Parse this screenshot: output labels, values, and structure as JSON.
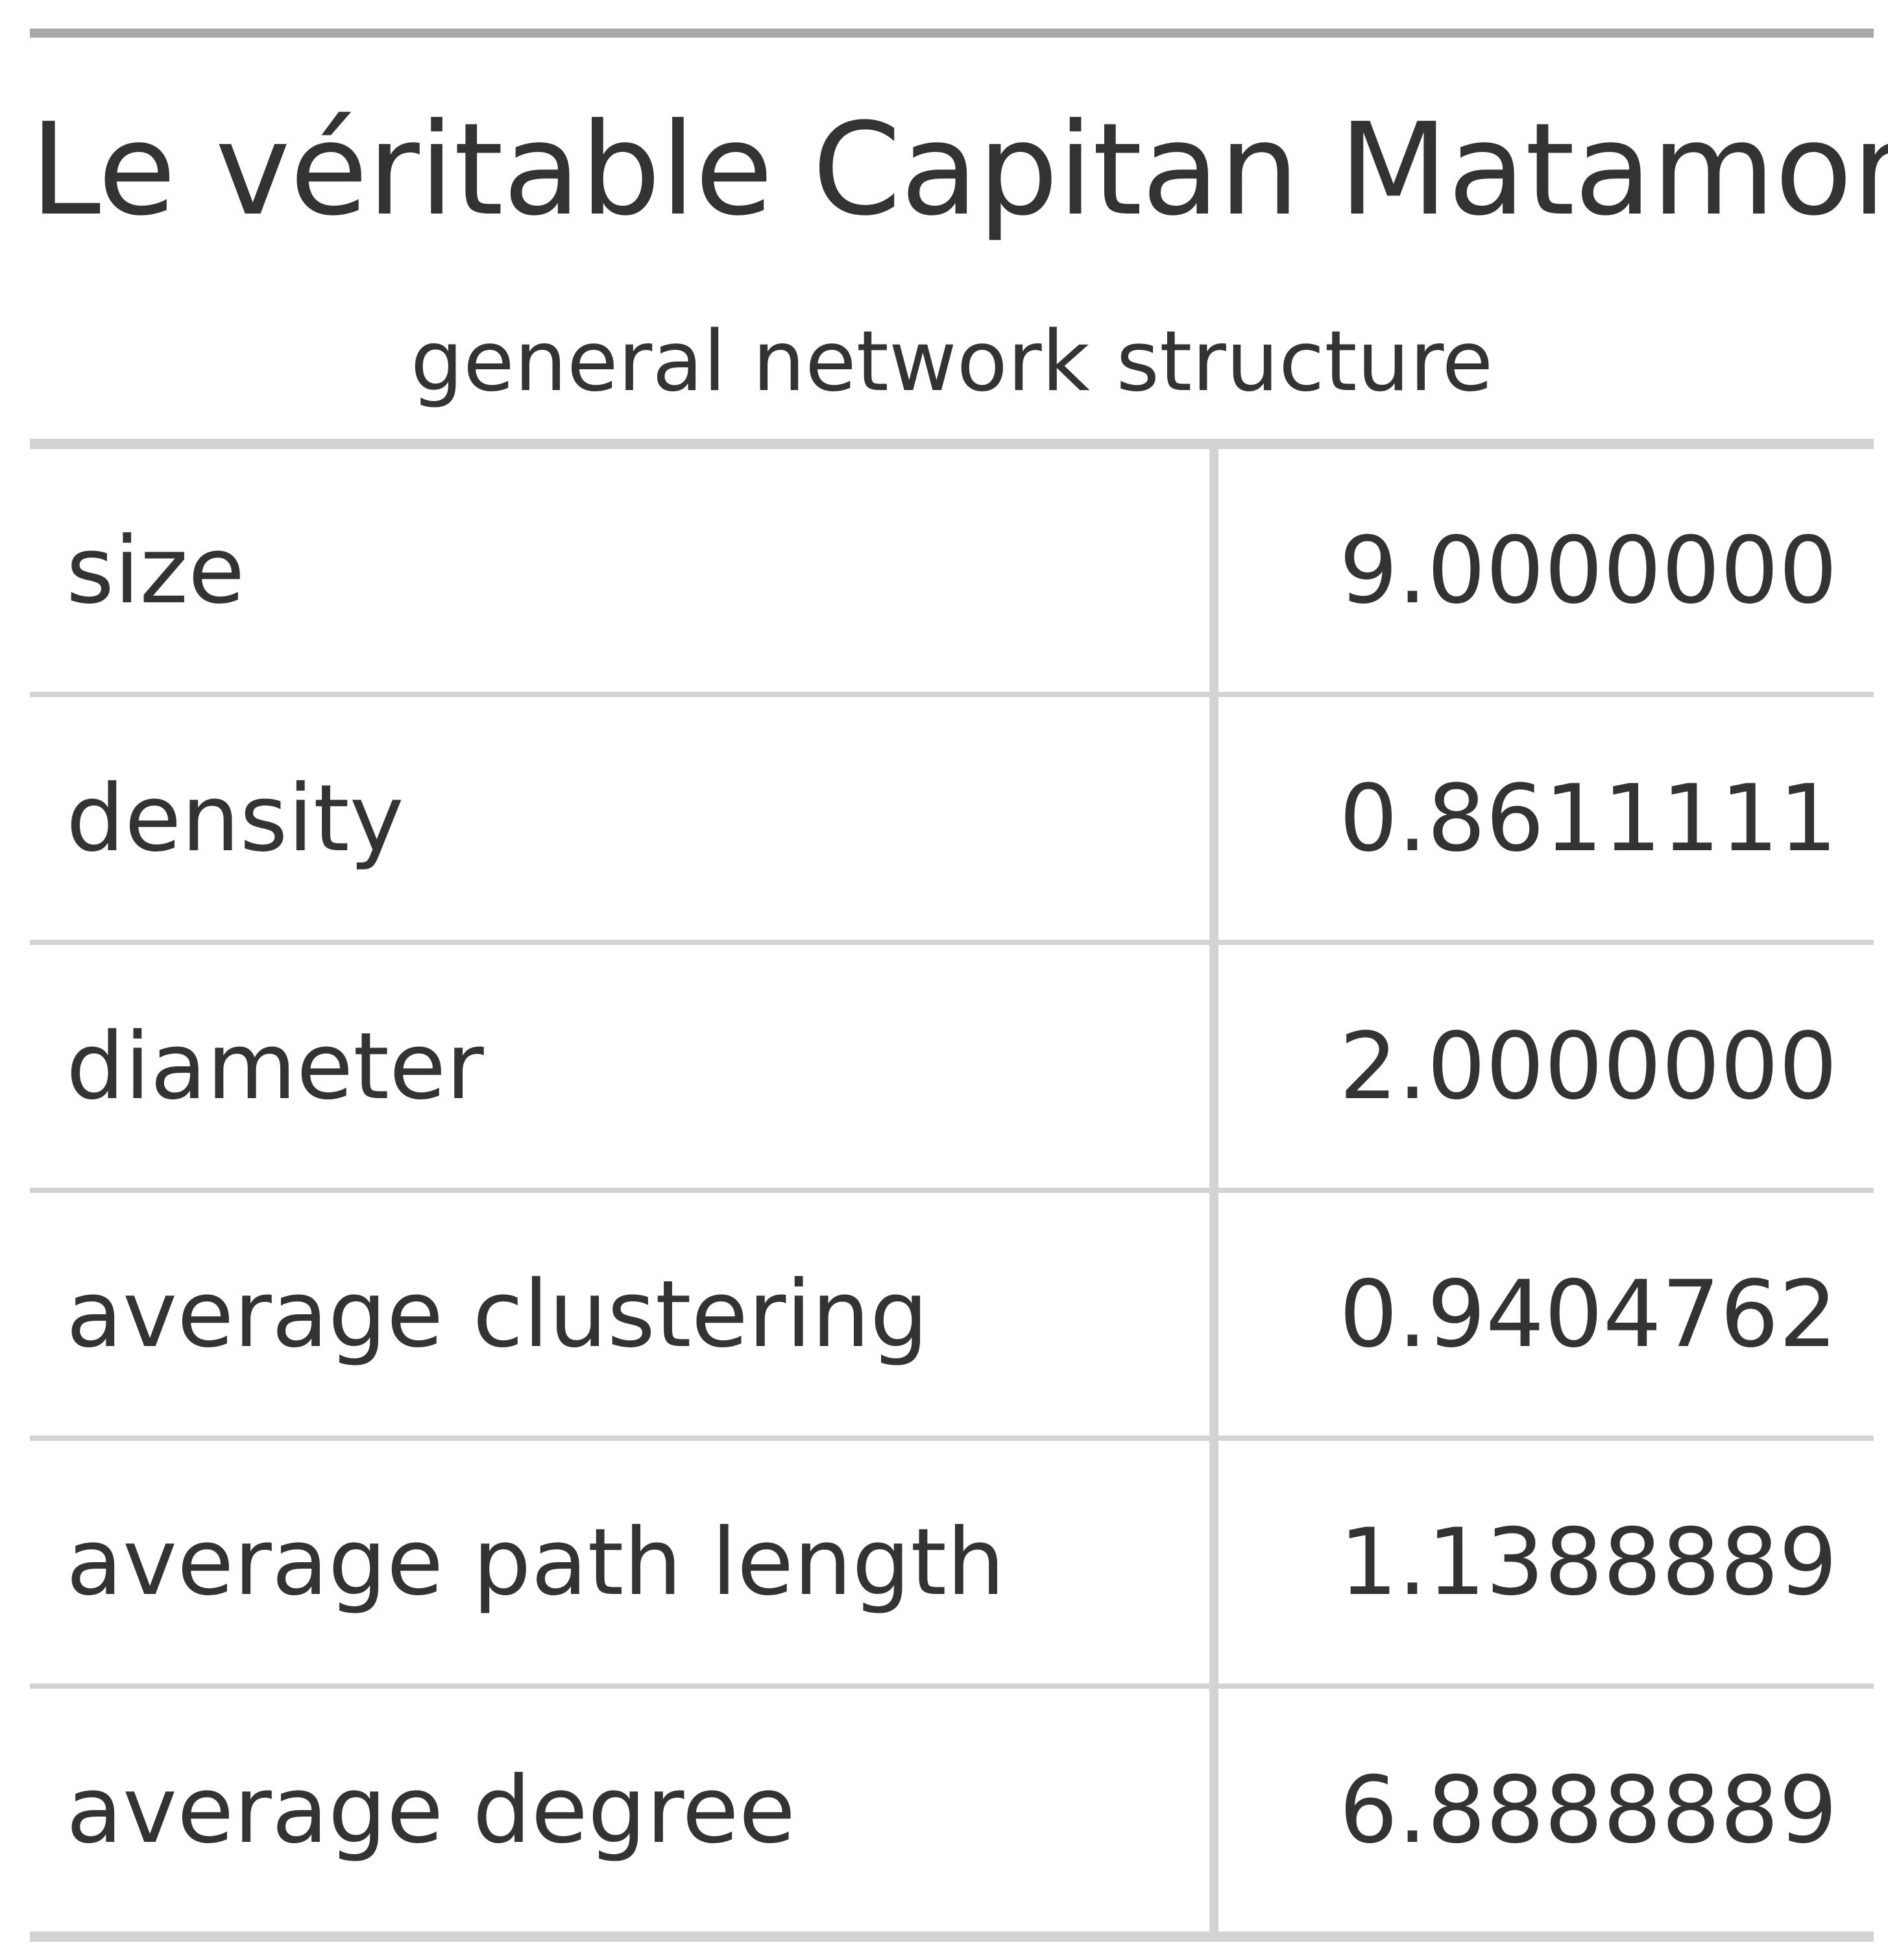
{
  "table": {
    "title": "Le véritable Capitan Matamore",
    "subtitle": "general network structure",
    "rows": [
      {
        "label": "size",
        "value": "9.0000000"
      },
      {
        "label": "density",
        "value": "0.8611111"
      },
      {
        "label": "diameter",
        "value": "2.0000000"
      },
      {
        "label": "average clustering",
        "value": "0.9404762"
      },
      {
        "label": "average path length",
        "value": "1.1388889"
      },
      {
        "label": "average degree",
        "value": "6.8888889"
      }
    ]
  }
}
